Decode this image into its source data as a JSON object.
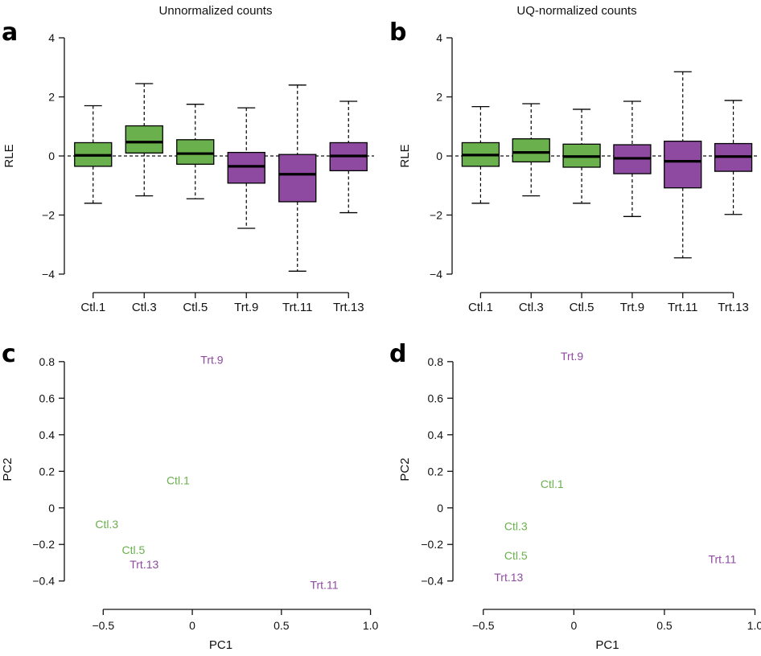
{
  "colors": {
    "ctl": "#6ab04c",
    "trt": "#8e4aa0",
    "axis": "#111111"
  },
  "chart_data": [
    {
      "panel": "a",
      "type": "boxplot",
      "title": "Unnormalized counts",
      "ylabel": "RLE",
      "xlabel": "",
      "ylim": [
        -4.3,
        4.3
      ],
      "yticks": [
        -4,
        -2,
        0,
        2,
        4
      ],
      "yticklabels": [
        "−4",
        "−2",
        "0",
        "2",
        "4"
      ],
      "reference_line": 0,
      "categories": [
        "Ctl.1",
        "Ctl.3",
        "Ctl.5",
        "Trt.9",
        "Trt.11",
        "Trt.13"
      ],
      "groups": [
        "ctl",
        "ctl",
        "ctl",
        "trt",
        "trt",
        "trt"
      ],
      "boxes": [
        {
          "whisker_low": -1.6,
          "q1": -0.35,
          "median": 0.02,
          "q3": 0.45,
          "whisker_high": 1.7
        },
        {
          "whisker_low": -1.35,
          "q1": 0.1,
          "median": 0.47,
          "q3": 1.02,
          "whisker_high": 2.45
        },
        {
          "whisker_low": -1.45,
          "q1": -0.28,
          "median": 0.08,
          "q3": 0.55,
          "whisker_high": 1.75
        },
        {
          "whisker_low": -2.45,
          "q1": -0.92,
          "median": -0.35,
          "q3": 0.12,
          "whisker_high": 1.63
        },
        {
          "whisker_low": -3.9,
          "q1": -1.55,
          "median": -0.62,
          "q3": 0.05,
          "whisker_high": 2.4
        },
        {
          "whisker_low": -1.92,
          "q1": -0.5,
          "median": 0.0,
          "q3": 0.45,
          "whisker_high": 1.85
        }
      ]
    },
    {
      "panel": "b",
      "type": "boxplot",
      "title": "UQ-normalized counts",
      "ylabel": "RLE",
      "xlabel": "",
      "ylim": [
        -4.3,
        4.3
      ],
      "yticks": [
        -4,
        -2,
        0,
        2,
        4
      ],
      "yticklabels": [
        "−4",
        "−2",
        "0",
        "2",
        "4"
      ],
      "reference_line": 0,
      "categories": [
        "Ctl.1",
        "Ctl.3",
        "Ctl.5",
        "Trt.9",
        "Trt.11",
        "Trt.13"
      ],
      "groups": [
        "ctl",
        "ctl",
        "ctl",
        "trt",
        "trt",
        "trt"
      ],
      "boxes": [
        {
          "whisker_low": -1.6,
          "q1": -0.35,
          "median": 0.03,
          "q3": 0.45,
          "whisker_high": 1.67
        },
        {
          "whisker_low": -1.35,
          "q1": -0.2,
          "median": 0.12,
          "q3": 0.58,
          "whisker_high": 1.77
        },
        {
          "whisker_low": -1.6,
          "q1": -0.38,
          "median": -0.02,
          "q3": 0.4,
          "whisker_high": 1.58
        },
        {
          "whisker_low": -2.05,
          "q1": -0.6,
          "median": -0.08,
          "q3": 0.38,
          "whisker_high": 1.85
        },
        {
          "whisker_low": -3.45,
          "q1": -1.08,
          "median": -0.18,
          "q3": 0.5,
          "whisker_high": 2.85
        },
        {
          "whisker_low": -1.98,
          "q1": -0.52,
          "median": -0.02,
          "q3": 0.42,
          "whisker_high": 1.88
        }
      ]
    },
    {
      "panel": "c",
      "type": "scatter",
      "title": "",
      "xlabel": "PC1",
      "ylabel": "PC2",
      "xlim": [
        -0.7,
        1.02
      ],
      "ylim": [
        -0.52,
        0.94
      ],
      "xticks": [
        -0.5,
        0,
        0.5,
        1.0
      ],
      "xticklabels": [
        "−0.5",
        "0",
        "0.5",
        "1.0"
      ],
      "yticks": [
        -0.4,
        -0.2,
        0,
        0.2,
        0.4,
        0.6,
        0.8
      ],
      "yticklabels": [
        "−0.4",
        "−0.2",
        "0",
        "0.2",
        "0.4",
        "0.6",
        "0.8"
      ],
      "points": [
        {
          "label": "Trt.9",
          "group": "trt",
          "x": 0.11,
          "y": 0.81
        },
        {
          "label": "Ctl.1",
          "group": "ctl",
          "x": -0.08,
          "y": 0.15
        },
        {
          "label": "Ctl.3",
          "group": "ctl",
          "x": -0.48,
          "y": -0.09
        },
        {
          "label": "Ctl.5",
          "group": "ctl",
          "x": -0.33,
          "y": -0.23
        },
        {
          "label": "Trt.13",
          "group": "trt",
          "x": -0.27,
          "y": -0.31
        },
        {
          "label": "Trt.11",
          "group": "trt",
          "x": 0.74,
          "y": -0.42
        }
      ]
    },
    {
      "panel": "d",
      "type": "scatter",
      "title": "",
      "xlabel": "PC1",
      "ylabel": "PC2",
      "xlim": [
        -0.65,
        1.02
      ],
      "ylim": [
        -0.52,
        0.94
      ],
      "xticks": [
        -0.5,
        0,
        0.5,
        1.0
      ],
      "xticklabels": [
        "−0.5",
        "0",
        "0.5",
        "1.0"
      ],
      "yticks": [
        -0.4,
        -0.2,
        0,
        0.2,
        0.4,
        0.6,
        0.8
      ],
      "yticklabels": [
        "−0.4",
        "−0.2",
        "0",
        "0.2",
        "0.4",
        "0.6",
        "0.8"
      ],
      "points": [
        {
          "label": "Trt.9",
          "group": "trt",
          "x": -0.01,
          "y": 0.83
        },
        {
          "label": "Ctl.1",
          "group": "ctl",
          "x": -0.12,
          "y": 0.13
        },
        {
          "label": "Ctl.3",
          "group": "ctl",
          "x": -0.32,
          "y": -0.1
        },
        {
          "label": "Ctl.5",
          "group": "ctl",
          "x": -0.32,
          "y": -0.26
        },
        {
          "label": "Trt.13",
          "group": "trt",
          "x": -0.36,
          "y": -0.38
        },
        {
          "label": "Trt.11",
          "group": "trt",
          "x": 0.82,
          "y": -0.28
        }
      ]
    }
  ]
}
